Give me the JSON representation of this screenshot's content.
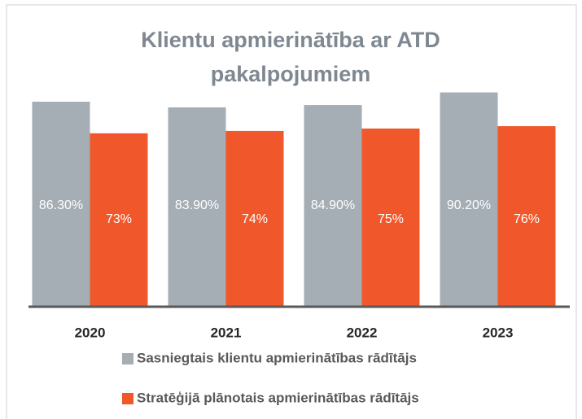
{
  "chart_data": {
    "type": "bar",
    "title": "Klientu apmierinātība ar ATD pakalpojumiem",
    "categories": [
      "2020",
      "2021",
      "2022",
      "2023"
    ],
    "series": [
      {
        "name": "Sasniegtais klientu apmierinātības rādītājs",
        "color": "#a5adb5",
        "values": [
          86.3,
          83.9,
          84.9,
          90.2
        ],
        "value_labels": [
          "86.30%",
          "83.90%",
          "84.90%",
          "90.20%"
        ]
      },
      {
        "name": "Stratēģijā plānotais apmierinātības rādītājs",
        "color": "#f0582b",
        "values": [
          73,
          74,
          75,
          76
        ],
        "value_labels": [
          "73%",
          "74%",
          "75%",
          "76%"
        ]
      }
    ],
    "ylim": [
      0,
      100
    ],
    "legend": "bottom"
  }
}
